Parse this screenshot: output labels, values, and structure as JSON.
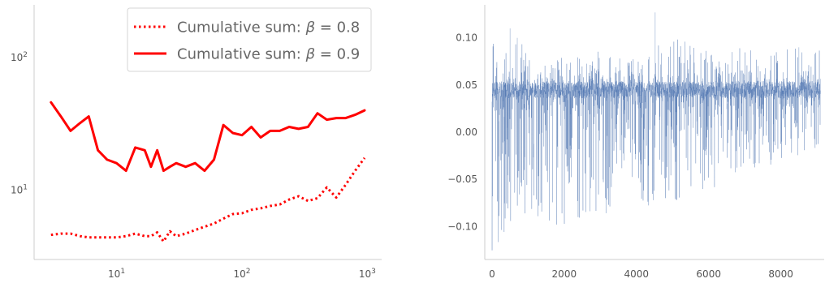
{
  "chart_data": [
    {
      "type": "line",
      "xscale": "log",
      "yscale": "log",
      "xlim": [
        2.2,
        1300
      ],
      "ylim": [
        3.0,
        250
      ],
      "x_ticks": [
        {
          "value": 10,
          "base": "10",
          "exp": "1"
        },
        {
          "value": 100,
          "base": "10",
          "exp": "2"
        },
        {
          "value": 1000,
          "base": "10",
          "exp": "3"
        }
      ],
      "y_ticks": [
        {
          "value": 10,
          "base": "10",
          "exp": "1"
        },
        {
          "value": 100,
          "base": "10",
          "exp": "2"
        }
      ],
      "legend": {
        "placement": "top-right"
      },
      "series": [
        {
          "name": "Cumulative sum: β = 0.8",
          "legend_prefix": "Cumulative sum: ",
          "legend_symbol": "β",
          "legend_suffix": " = 0.8",
          "color": "#ff0000",
          "style": "dotted",
          "x": [
            3,
            3.6,
            4.3,
            5.1,
            6.0,
            7.1,
            8.4,
            10,
            11.9,
            14.1,
            16.8,
            18.8,
            21.1,
            23.7,
            26.6,
            29.9,
            35.6,
            42.3,
            50.3,
            59.8,
            71.1,
            84.5,
            100,
            119,
            141,
            168,
            200,
            238,
            283,
            336,
            400,
            475,
            565,
            672,
            798,
            950
          ],
          "y": [
            4.6,
            4.7,
            4.7,
            4.5,
            4.4,
            4.4,
            4.4,
            4.4,
            4.5,
            4.7,
            4.5,
            4.5,
            4.8,
            4.1,
            4.9,
            4.5,
            4.7,
            5.0,
            5.3,
            5.6,
            6.1,
            6.6,
            6.7,
            7.1,
            7.3,
            7.6,
            7.8,
            8.5,
            9.0,
            8.3,
            8.7,
            10.5,
            8.8,
            11.0,
            14.0,
            17.5
          ]
        },
        {
          "name": "Cumulative sum: β = 0.9",
          "legend_prefix": "Cumulative sum: ",
          "legend_symbol": "β",
          "legend_suffix": " = 0.9",
          "color": "#ff0000",
          "style": "solid",
          "x": [
            3,
            3.6,
            4.3,
            5.1,
            6.0,
            7.1,
            8.4,
            10,
            11.9,
            14.1,
            16.8,
            18.8,
            21.1,
            23.7,
            26.6,
            29.9,
            35.6,
            42.3,
            50.3,
            59.8,
            71.1,
            84.5,
            100,
            119,
            141,
            168,
            200,
            238,
            283,
            336,
            400,
            475,
            565,
            672,
            798,
            950
          ],
          "y": [
            46,
            36,
            28,
            32,
            36,
            20,
            17,
            16,
            14,
            21,
            20,
            15,
            20,
            14,
            15,
            16,
            15,
            16,
            14,
            17,
            31,
            27,
            26,
            30,
            25,
            28,
            28,
            30,
            29,
            30,
            38,
            34,
            35,
            35,
            37,
            40
          ]
        }
      ]
    },
    {
      "type": "line",
      "xlim": [
        -200,
        9200
      ],
      "ylim": [
        -0.135,
        0.135
      ],
      "x_ticks": [
        0,
        2000,
        4000,
        6000,
        8000
      ],
      "y_ticks": [
        {
          "value": 0.1,
          "label": "0.10"
        },
        {
          "value": 0.05,
          "label": "0.05"
        },
        {
          "value": 0.0,
          "label": "0.00"
        },
        {
          "value": -0.05,
          "label": "−0.05"
        },
        {
          "value": -0.1,
          "label": "−0.10"
        }
      ],
      "series": [
        {
          "color": "#4c72b0",
          "n_points": 9100,
          "band_center": 0.045,
          "envelope_x": [
            0,
            500,
            1000,
            1500,
            2000,
            2500,
            3000,
            3500,
            4000,
            5000,
            6000,
            7000,
            8000,
            9000
          ],
          "envelope_max": [
            0.11,
            0.1,
            0.09,
            0.08,
            0.08,
            0.08,
            0.09,
            0.08,
            0.08,
            0.1,
            0.09,
            0.09,
            0.09,
            0.09
          ],
          "envelope_min": [
            -0.127,
            -0.1,
            -0.1,
            -0.105,
            -0.11,
            -0.105,
            -0.1,
            -0.06,
            -0.08,
            -0.08,
            -0.06,
            -0.05,
            -0.03,
            -0.02
          ]
        }
      ]
    }
  ]
}
